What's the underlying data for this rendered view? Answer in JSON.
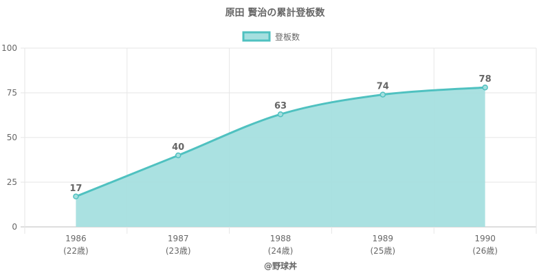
{
  "chart_data": {
    "type": "area",
    "title": "原田 賢治の累計登板数",
    "categories": [
      "1986",
      "1987",
      "1988",
      "1989",
      "1990"
    ],
    "category_sublabels": [
      "(22歳)",
      "(23歳)",
      "(24歳)",
      "(25歳)",
      "(26歳)"
    ],
    "series": [
      {
        "name": "登板数",
        "values": [
          17,
          40,
          63,
          74,
          78
        ],
        "color": "#4fc1c0",
        "fill": "#a5dfdf"
      }
    ],
    "data_labels": [
      "17",
      "40",
      "63",
      "74",
      "78"
    ],
    "y_ticks": [
      "0",
      "25",
      "50",
      "75",
      "100"
    ],
    "ylim": [
      0,
      100
    ],
    "grid": true,
    "legend_position": "top"
  },
  "footer": "@野球丼"
}
